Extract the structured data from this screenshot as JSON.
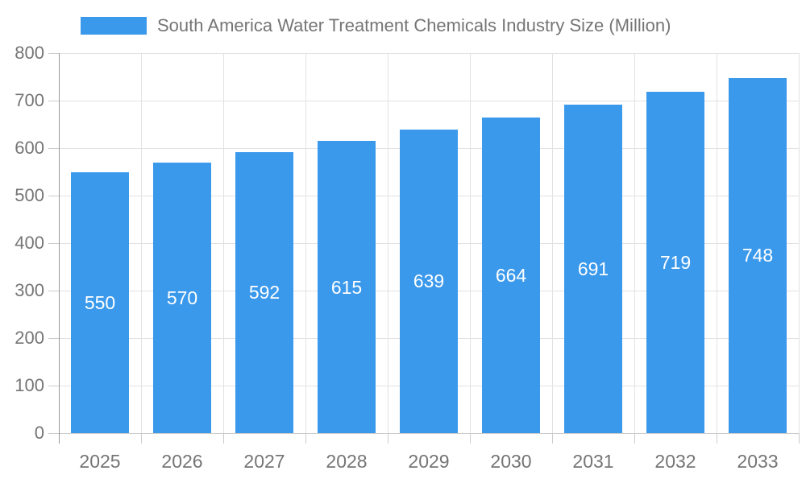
{
  "chart_data": {
    "type": "bar",
    "title": "South America Water Treatment Chemicals Industry Size (Million)",
    "legend_entries": [
      "South America Water Treatment Chemicals Industry Size (Million)"
    ],
    "legend_position": "top-left",
    "categories": [
      "2025",
      "2026",
      "2027",
      "2028",
      "2029",
      "2030",
      "2031",
      "2032",
      "2033"
    ],
    "values": [
      550,
      570,
      592,
      615,
      639,
      664,
      691,
      719,
      748
    ],
    "xlabel": "",
    "ylabel": "",
    "ylim": [
      0,
      800
    ],
    "yticks": [
      0,
      100,
      200,
      300,
      400,
      500,
      600,
      700,
      800
    ],
    "grid": true,
    "bar_labels_shown": true,
    "colors": {
      "bar": "#3B99EC",
      "bar_label": "#FFFFFF",
      "axis_text": "#757575",
      "gridline": "#E2E2E2",
      "axis_line": "#999999",
      "tick": "#CCCCCC",
      "baseline": "#CCCCCC"
    }
  }
}
